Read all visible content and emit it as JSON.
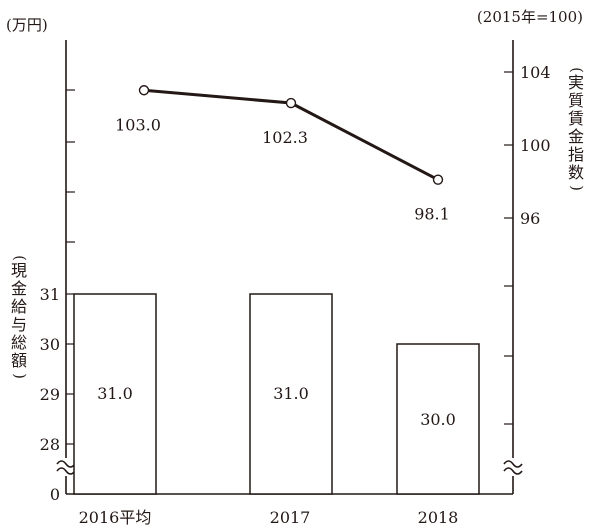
{
  "chart_data": {
    "type": "bar+line",
    "left_axis": {
      "unit": "(万円)",
      "title": "現金給与総額",
      "ticks": [
        "31",
        "30",
        "29",
        "28",
        "0"
      ],
      "range_shown": [
        28,
        31
      ],
      "broken": true
    },
    "right_axis": {
      "unit": "(2015年=100)",
      "title": "実質賃金指数",
      "ticks": [
        "104",
        "100",
        "96"
      ],
      "range_shown": [
        96,
        104
      ],
      "broken": true
    },
    "categories": [
      "2016平均",
      "2017",
      "2018"
    ],
    "bar_series": {
      "values": [
        31.0,
        31.0,
        30.0
      ],
      "labels": [
        "31.0",
        "31.0",
        "30.0"
      ]
    },
    "line_series": {
      "values": [
        103.0,
        102.3,
        98.1
      ],
      "labels": [
        "103.0",
        "102.3",
        "98.1"
      ]
    }
  }
}
